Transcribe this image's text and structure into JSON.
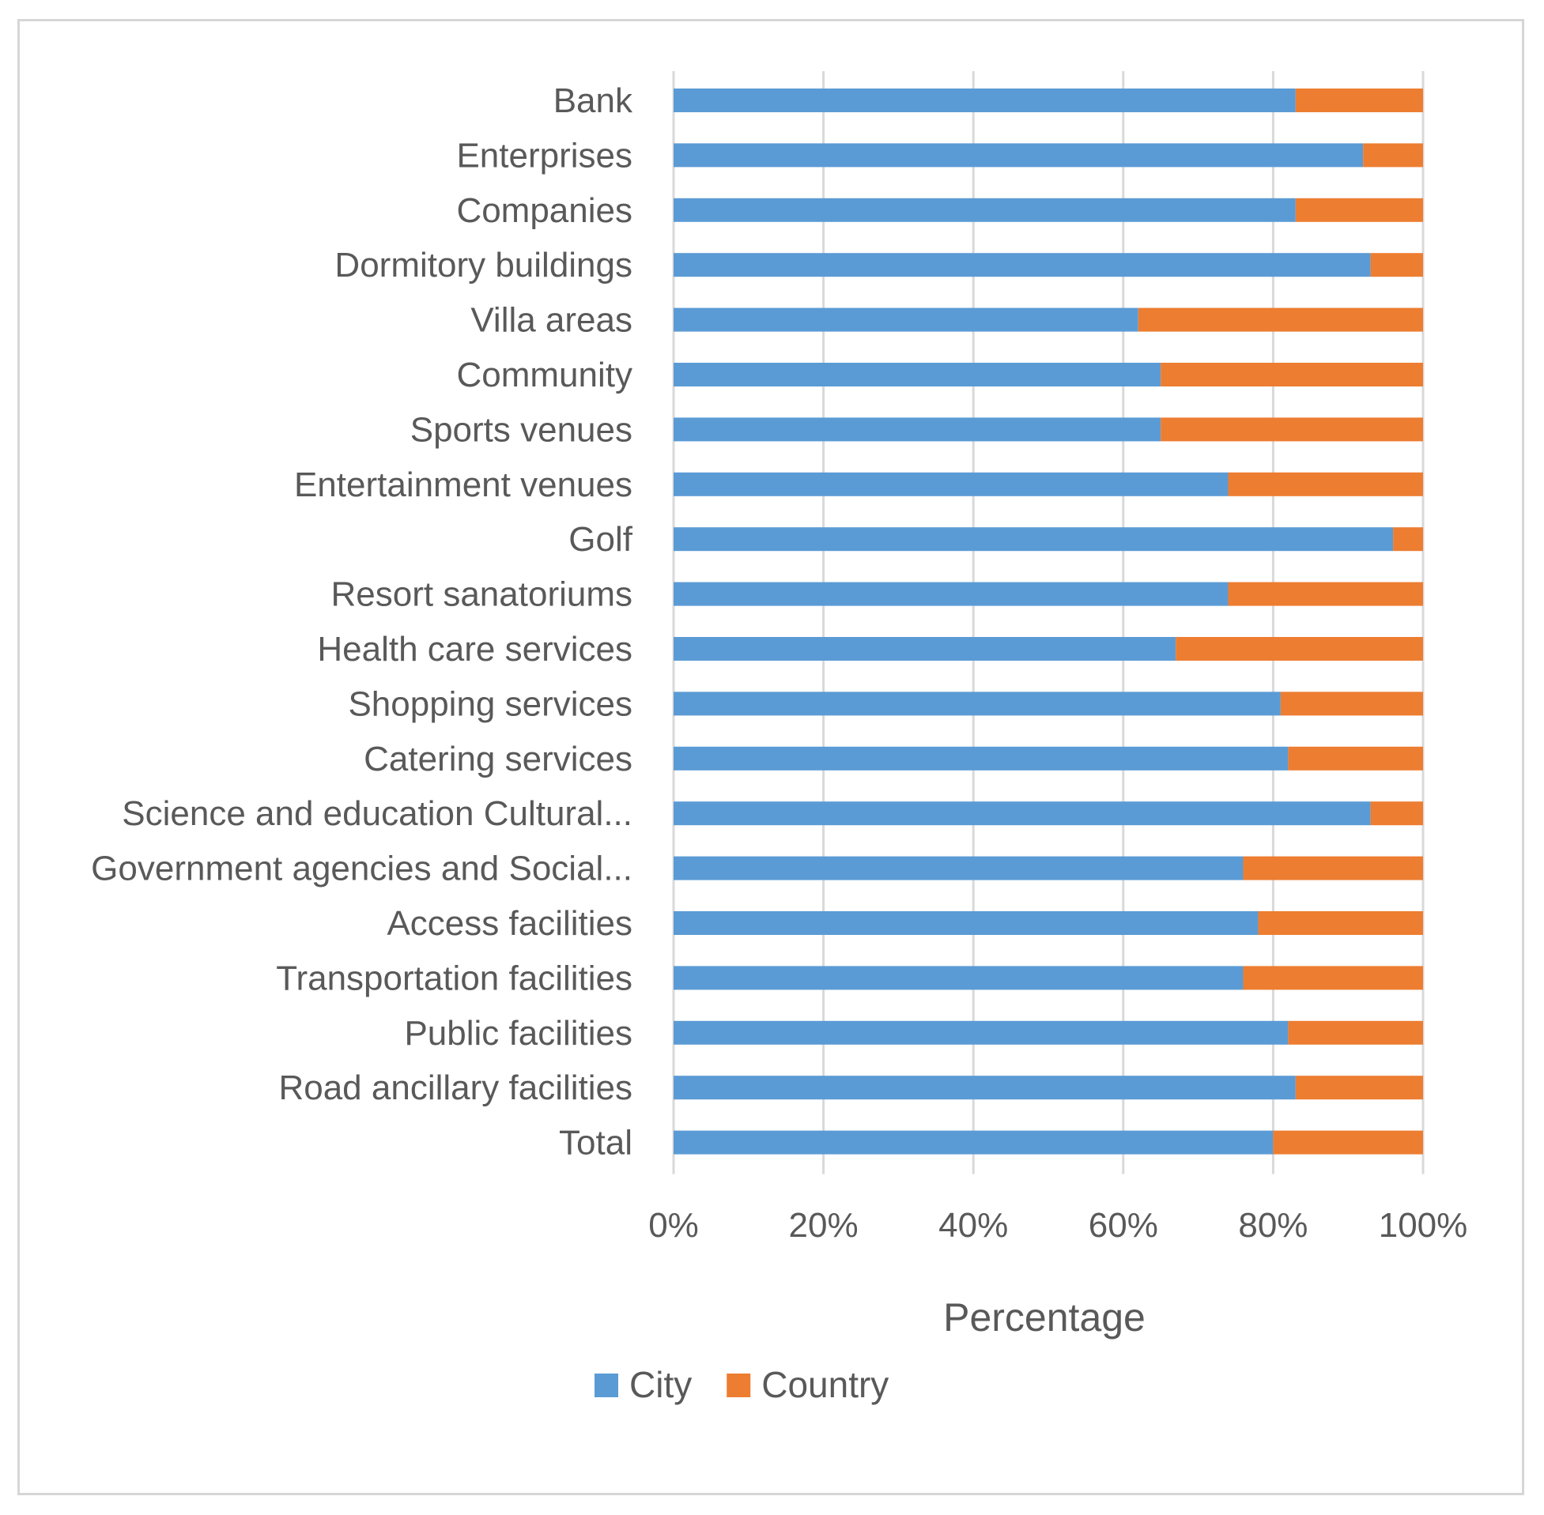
{
  "chart_data": {
    "type": "bar",
    "orientation": "horizontal",
    "stacked": "percent",
    "categories": [
      "Bank",
      "Enterprises",
      "Companies",
      "Dormitory buildings",
      "Villa areas",
      "Community",
      "Sports venues",
      "Entertainment venues",
      "Golf",
      "Resort sanatoriums",
      "Health care services",
      "Shopping services",
      "Catering services",
      "Science and education Cultural...",
      "Government agencies and Social...",
      "Access facilities",
      "Transportation facilities",
      "Public facilities",
      "Road ancillary facilities",
      "Total"
    ],
    "series": [
      {
        "name": "City",
        "color": "#5B9BD5",
        "values": [
          83,
          92,
          83,
          93,
          62,
          65,
          65,
          74,
          96,
          74,
          67,
          81,
          82,
          93,
          76,
          78,
          76,
          82,
          83,
          80
        ]
      },
      {
        "name": "Country",
        "color": "#ED7D31",
        "values": [
          17,
          8,
          17,
          7,
          38,
          35,
          35,
          26,
          4,
          26,
          33,
          19,
          18,
          7,
          24,
          22,
          24,
          18,
          17,
          20
        ]
      }
    ],
    "xlabel": "Percentage",
    "ylabel": "",
    "xlim": [
      0,
      100
    ],
    "xticks": [
      "0%",
      "20%",
      "40%",
      "60%",
      "80%",
      "100%"
    ],
    "grid": "vertical",
    "legend": "bottom"
  }
}
